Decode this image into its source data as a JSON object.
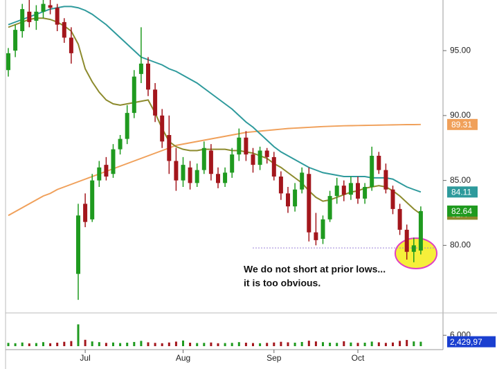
{
  "chart_data": [
    {
      "type": "candlestick",
      "categories": [
        null,
        null,
        null,
        null,
        null,
        null,
        null,
        null,
        null,
        null,
        null,
        "Jul",
        null,
        null,
        null,
        null,
        null,
        null,
        null,
        null,
        null,
        null,
        null,
        null,
        null,
        "Aug",
        null,
        null,
        null,
        null,
        null,
        null,
        null,
        null,
        null,
        null,
        null,
        null,
        "Sep",
        null,
        null,
        null,
        null,
        null,
        null,
        null,
        null,
        null,
        null,
        null,
        "Oct",
        null,
        null,
        null,
        null,
        null,
        null,
        null,
        null,
        null
      ],
      "ohlc": [
        [
          93.5,
          95.2,
          93.0,
          94.8
        ],
        [
          95.0,
          97.0,
          94.5,
          96.6
        ],
        [
          96.5,
          98.6,
          96.0,
          98.2
        ],
        [
          98.0,
          98.9,
          96.8,
          97.2
        ],
        [
          97.3,
          98.5,
          96.6,
          98.0
        ],
        [
          98.0,
          98.9,
          97.5,
          98.6
        ],
        [
          98.5,
          98.9,
          97.8,
          98.3
        ],
        [
          98.3,
          98.6,
          96.5,
          97.0
        ],
        [
          97.2,
          97.5,
          95.6,
          96.0
        ],
        [
          96.0,
          96.8,
          94.0,
          94.8
        ],
        [
          77.8,
          83.2,
          75.8,
          82.3
        ],
        [
          83.2,
          84.0,
          81.4,
          81.8
        ],
        [
          82.0,
          85.5,
          81.8,
          85.0
        ],
        [
          85.0,
          86.5,
          84.5,
          86.0
        ],
        [
          86.2,
          86.8,
          85.0,
          85.3
        ],
        [
          85.5,
          87.8,
          85.2,
          87.4
        ],
        [
          87.4,
          88.5,
          87.0,
          88.2
        ],
        [
          88.2,
          90.8,
          87.8,
          90.2
        ],
        [
          90.2,
          93.5,
          89.8,
          93.0
        ],
        [
          93.2,
          96.8,
          92.5,
          94.0
        ],
        [
          94.0,
          94.5,
          91.5,
          92.0
        ],
        [
          92.0,
          92.5,
          89.5,
          90.0
        ],
        [
          90.0,
          90.5,
          87.5,
          88.0
        ],
        [
          88.5,
          90.0,
          85.5,
          86.5
        ],
        [
          86.5,
          87.5,
          84.2,
          85.0
        ],
        [
          85.0,
          86.8,
          84.5,
          86.2
        ],
        [
          86.0,
          86.5,
          84.3,
          84.8
        ],
        [
          84.8,
          86.3,
          84.5,
          85.8
        ],
        [
          85.8,
          88.0,
          85.5,
          87.5
        ],
        [
          87.3,
          87.8,
          85.0,
          85.5
        ],
        [
          85.5,
          86.0,
          84.4,
          84.8
        ],
        [
          84.8,
          86.0,
          84.5,
          85.6
        ],
        [
          85.6,
          87.5,
          85.2,
          87.0
        ],
        [
          87.0,
          89.0,
          86.5,
          88.3
        ],
        [
          88.3,
          88.8,
          86.5,
          87.0
        ],
        [
          87.0,
          87.5,
          85.6,
          86.2
        ],
        [
          86.2,
          87.6,
          85.8,
          87.3
        ],
        [
          87.3,
          87.5,
          86.3,
          86.8
        ],
        [
          86.8,
          87.2,
          85.0,
          85.3
        ],
        [
          85.3,
          85.7,
          83.5,
          84.0
        ],
        [
          84.0,
          84.5,
          82.5,
          83.0
        ],
        [
          83.0,
          84.8,
          82.6,
          84.3
        ],
        [
          84.3,
          86.0,
          84.0,
          85.6
        ],
        [
          85.5,
          86.0,
          80.3,
          81.0
        ],
        [
          81.0,
          82.5,
          80.0,
          80.4
        ],
        [
          80.5,
          82.3,
          80.1,
          82.0
        ],
        [
          82.0,
          84.2,
          81.8,
          83.8
        ],
        [
          83.8,
          85.2,
          83.2,
          84.6
        ],
        [
          84.6,
          85.0,
          83.4,
          83.9
        ],
        [
          83.9,
          85.3,
          83.5,
          84.8
        ],
        [
          84.8,
          85.3,
          83.2,
          83.6
        ],
        [
          83.6,
          84.8,
          83.2,
          84.5
        ],
        [
          84.5,
          87.6,
          84.2,
          86.9
        ],
        [
          86.9,
          87.2,
          85.5,
          85.8
        ],
        [
          85.8,
          86.3,
          84.0,
          84.3
        ],
        [
          84.3,
          84.6,
          82.4,
          82.8
        ],
        [
          82.8,
          83.2,
          80.8,
          81.2
        ],
        [
          81.2,
          81.6,
          78.9,
          79.5
        ],
        [
          79.5,
          80.6,
          78.7,
          80.0
        ],
        [
          79.6,
          83.0,
          79.3,
          82.64
        ]
      ],
      "up_color": "#1f9a1f",
      "down_color": "#a3161c",
      "series": [
        {
          "color": "#f0a05a",
          "values": [
            82.3,
            82.6,
            82.9,
            83.2,
            83.5,
            83.8,
            84.0,
            84.3,
            84.5,
            84.7,
            84.9,
            85.1,
            85.3,
            85.5,
            85.7,
            85.9,
            86.1,
            86.3,
            86.5,
            86.7,
            86.9,
            87.1,
            87.3,
            87.5,
            87.7,
            87.8,
            87.9,
            88.0,
            88.1,
            88.2,
            88.3,
            88.4,
            88.5,
            88.6,
            88.7,
            88.75,
            88.8,
            88.85,
            88.9,
            88.95,
            89.0,
            89.03,
            89.06,
            89.09,
            89.12,
            89.15,
            89.17,
            89.19,
            89.21,
            89.22,
            89.23,
            89.24,
            89.25,
            89.26,
            89.27,
            89.28,
            89.29,
            89.3,
            89.3,
            89.31
          ]
        },
        {
          "color": "#2e9a9c",
          "values": [
            97.0,
            97.2,
            97.4,
            97.6,
            97.8,
            98.0,
            98.2,
            98.3,
            98.4,
            98.4,
            98.3,
            98.1,
            97.8,
            97.4,
            97.0,
            96.5,
            96.0,
            95.5,
            95.0,
            94.5,
            94.3,
            94.1,
            93.9,
            93.6,
            93.4,
            93.1,
            92.8,
            92.5,
            92.1,
            91.7,
            91.3,
            90.9,
            90.5,
            90.0,
            89.5,
            89.1,
            88.6,
            88.1,
            87.6,
            87.2,
            86.9,
            86.6,
            86.3,
            86.0,
            85.8,
            85.6,
            85.5,
            85.4,
            85.3,
            85.3,
            85.3,
            85.3,
            85.2,
            85.2,
            85.2,
            85.1,
            84.8,
            84.5,
            84.3,
            84.11
          ]
        },
        {
          "color": "#8c8a2c",
          "values": [
            96.8,
            97.0,
            97.2,
            97.4,
            97.5,
            97.5,
            97.4,
            97.2,
            96.9,
            96.5,
            95.5,
            93.6,
            92.6,
            91.8,
            91.2,
            90.9,
            90.8,
            90.9,
            91.0,
            91.1,
            91.2,
            90.2,
            89.0,
            88.0,
            87.6,
            87.4,
            87.3,
            87.3,
            87.4,
            87.4,
            87.4,
            87.4,
            87.3,
            87.3,
            87.2,
            87.1,
            86.9,
            86.7,
            86.3,
            86.0,
            85.6,
            85.2,
            84.8,
            84.2,
            83.7,
            83.4,
            83.5,
            83.7,
            83.9,
            84.1,
            84.2,
            84.4,
            84.5,
            84.6,
            84.5,
            84.2,
            83.8,
            83.3,
            82.8,
            82.4
          ]
        }
      ],
      "ylim": [
        74.9,
        98.9
      ],
      "yticks": [
        {
          "value": 80,
          "label": "80.00"
        },
        {
          "value": 85,
          "label": "85.00"
        },
        {
          "value": 90,
          "label": "90.00"
        },
        {
          "value": 95,
          "label": "95.00"
        }
      ],
      "reference_line": {
        "value": 79.8,
        "color": "#9b80d6"
      },
      "annotation": [
        "We do not short at prior lows...",
        "it is too obvious."
      ]
    },
    {
      "type": "bar",
      "values": [
        1800,
        1600,
        2000,
        1500,
        1700,
        2200,
        1600,
        1900,
        2400,
        2800,
        12000,
        3500,
        2600,
        2200,
        1800,
        2000,
        1700,
        1900,
        2300,
        2900,
        2100,
        1800,
        1600,
        2000,
        2500,
        3100,
        1900,
        1700,
        1800,
        2000,
        1600,
        1700,
        1800,
        2200,
        1900,
        1700,
        1600,
        1800,
        2000,
        2400,
        2100,
        1900,
        2300,
        3000,
        2600,
        2200,
        1900,
        1800,
        2700,
        2000,
        1800,
        1900,
        2500,
        2100,
        1800,
        2000,
        2900,
        3400,
        2600,
        2429.97
      ],
      "ylim": [
        0,
        16000
      ],
      "yticks": [
        {
          "value": 6000,
          "label": "6,000"
        }
      ],
      "flag": "2,429,97",
      "flag_color": "#1a3fd0"
    }
  ]
}
